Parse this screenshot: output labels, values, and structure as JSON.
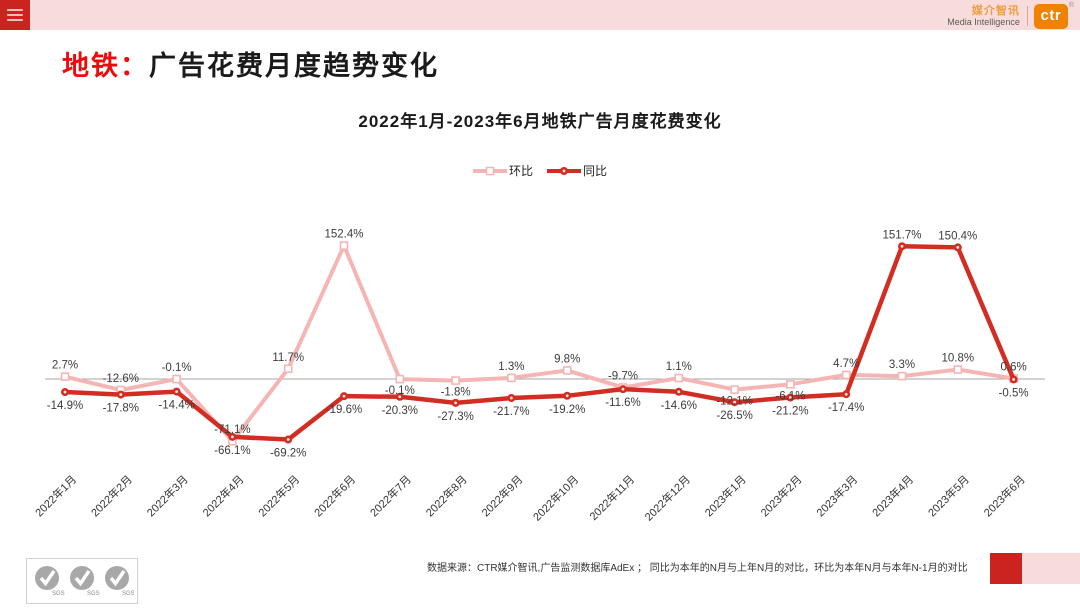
{
  "header": {
    "bar_color": "#f8dcdc",
    "menu_button_color": "#cb2420",
    "brand": {
      "name_cn": "媒介智讯",
      "name_en": "Media Intelligence",
      "logo_text": "ctr",
      "registered_mark": "®",
      "accent_color": "#ef8200"
    }
  },
  "page_title": {
    "highlight": "地铁：",
    "rest": "广告花费月度趋势变化",
    "highlight_color": "#ee0a0a"
  },
  "chart_data": {
    "type": "line",
    "title": "2022年1月-2023年6月地铁广告月度花费变化",
    "unit": "%",
    "categories": [
      "2022年1月",
      "2022年2月",
      "2022年3月",
      "2022年4月",
      "2022年5月",
      "2022年6月",
      "2022年7月",
      "2022年8月",
      "2022年9月",
      "2022年10月",
      "2022年11月",
      "2022年12月",
      "2023年1月",
      "2023年2月",
      "2023年3月",
      "2023年4月",
      "2023年5月",
      "2023年6月"
    ],
    "series": [
      {
        "name": "环比",
        "color": "#f5b5b5",
        "marker": "square",
        "values": [
          2.7,
          -12.6,
          -0.1,
          -71.1,
          11.7,
          152.4,
          -0.1,
          -1.8,
          1.3,
          9.8,
          -9.7,
          1.1,
          -12.1,
          -6.1,
          4.7,
          3.3,
          10.8,
          0.6
        ],
        "label_side": [
          "above",
          "above",
          "above",
          "above",
          "above",
          "above",
          "below",
          "below",
          "above",
          "above",
          "above",
          "above",
          "below",
          "below",
          "above",
          "above",
          "above",
          "above"
        ]
      },
      {
        "name": "同比",
        "color": "#d22d23",
        "marker": "circle",
        "values": [
          -14.9,
          -17.8,
          -14.4,
          -66.1,
          -69.2,
          -19.6,
          -20.3,
          -27.3,
          -21.7,
          -19.2,
          -11.6,
          -14.6,
          -26.5,
          -21.2,
          -17.4,
          151.7,
          150.4,
          -0.5
        ],
        "label_side": [
          "below",
          "below",
          "below",
          "below",
          "below",
          "below",
          "below",
          "below",
          "below",
          "below",
          "below",
          "below",
          "below",
          "below",
          "below",
          "above",
          "above",
          "below"
        ]
      }
    ],
    "baseline_value": 0,
    "grid": "baseline-only",
    "legend_position": "top-center",
    "y_range_hint": [
      -109,
      170
    ]
  },
  "footer": {
    "source_text": "数据来源：CTR媒介智讯,广告监测数据库AdEx ； 同比为本年的N月与上年N月的对比，环比为本年N月与本年N-1月的对比",
    "certification_label": "SGS",
    "accent_colors": {
      "red": "#cb2420",
      "pink": "#f8dcdc"
    }
  }
}
